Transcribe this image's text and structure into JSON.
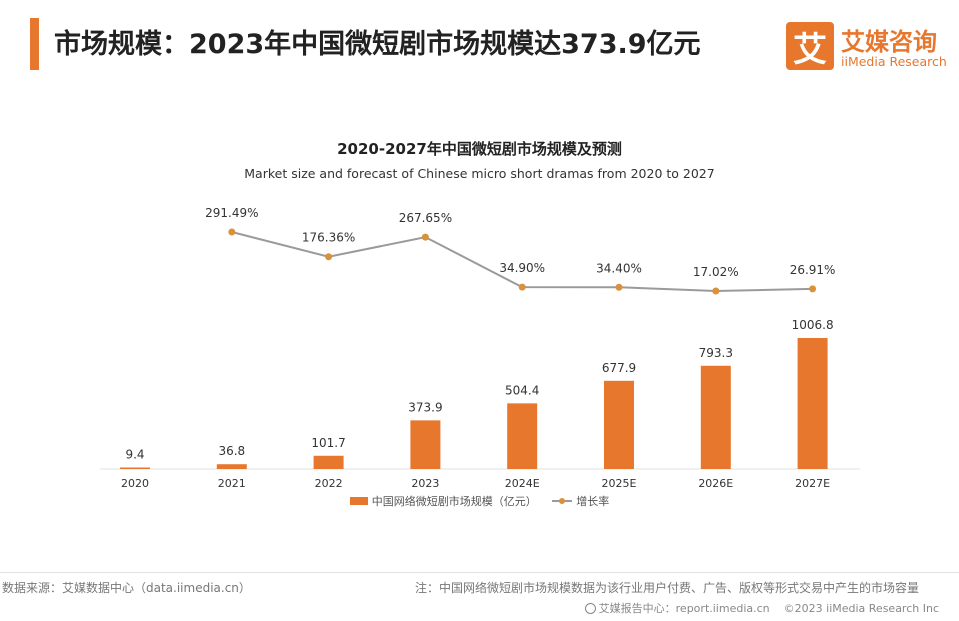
{
  "header": {
    "title": "市场规模：2023年中国微短剧市场规模达373.9亿元"
  },
  "logo": {
    "mark": "艾",
    "name_cn": "艾媒咨询",
    "name_en": "iiMedia Research"
  },
  "chart_data": {
    "type": "bar",
    "title": "2020-2027年中国微短剧市场规模及预测",
    "subtitle": "Market size and forecast of Chinese micro short dramas from 2020 to 2027",
    "categories": [
      "2020",
      "2021",
      "2022",
      "2023",
      "2024E",
      "2025E",
      "2026E",
      "2027E"
    ],
    "series": [
      {
        "name": "中国网络微短剧市场规模（亿元）",
        "type": "bar",
        "values": [
          9.4,
          36.8,
          101.7,
          373.9,
          504.4,
          677.9,
          793.3,
          1006.8
        ],
        "labels": [
          "9.4",
          "36.8",
          "101.7",
          "373.9",
          "504.4",
          "677.9",
          "793.3",
          "1006.8"
        ],
        "color": "#e8772e"
      },
      {
        "name": "增长率",
        "type": "line",
        "values": [
          null,
          291.49,
          176.36,
          267.65,
          34.9,
          34.4,
          17.02,
          26.91
        ],
        "labels": [
          "",
          "291.49%",
          "176.36%",
          "267.65%",
          "34.90%",
          "34.40%",
          "17.02%",
          "26.91%"
        ],
        "color": "#9a9a9a",
        "marker_color": "#d9913a"
      }
    ],
    "legend_position": "bottom",
    "grid": false
  },
  "footer": {
    "source": "数据来源：艾媒数据中心（data.iimedia.cn）",
    "note": "注：中国网络微短剧市场规模数据为该行业用户付费、广告、版权等形式交易中产生的市场容量",
    "report": "艾媒报告中心：report.iimedia.cn",
    "copyright": "©2023  iiMedia Research Inc"
  }
}
